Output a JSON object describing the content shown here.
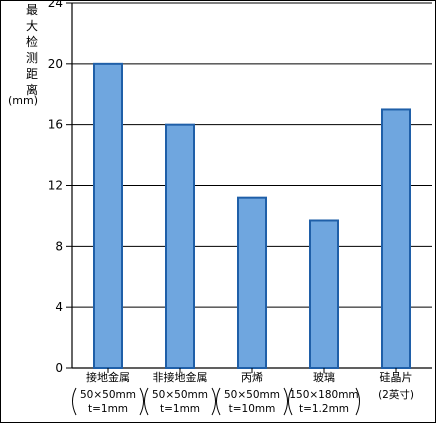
{
  "chart_data": {
    "type": "bar",
    "ylabel_chars": [
      "最",
      "大",
      "检",
      "测",
      "距",
      "离"
    ],
    "yunit": "(mm)",
    "ylim": [
      0,
      24
    ],
    "yticks": [
      0,
      4,
      8,
      12,
      16,
      20,
      24
    ],
    "grid": true,
    "bar_color": "#6fa6df",
    "bar_edge_color": "#1f5fa8",
    "categories": [
      {
        "name": "接地金属",
        "sub1": "50×50mm",
        "sub2": "t=1mm",
        "paren": true
      },
      {
        "name": "非接地金属",
        "sub1": "50×50mm",
        "sub2": "t=1mm",
        "paren": true
      },
      {
        "name": "丙烯",
        "sub1": "50×50mm",
        "sub2": "t=10mm",
        "paren": true
      },
      {
        "name": "玻璃",
        "sub1": "150×180mm",
        "sub2": "t=1.2mm",
        "paren": true
      },
      {
        "name": "硅晶片",
        "sub1": "(2英寸)",
        "sub2": "",
        "paren": false
      }
    ],
    "values": [
      20,
      16,
      11.2,
      9.7,
      17
    ]
  }
}
